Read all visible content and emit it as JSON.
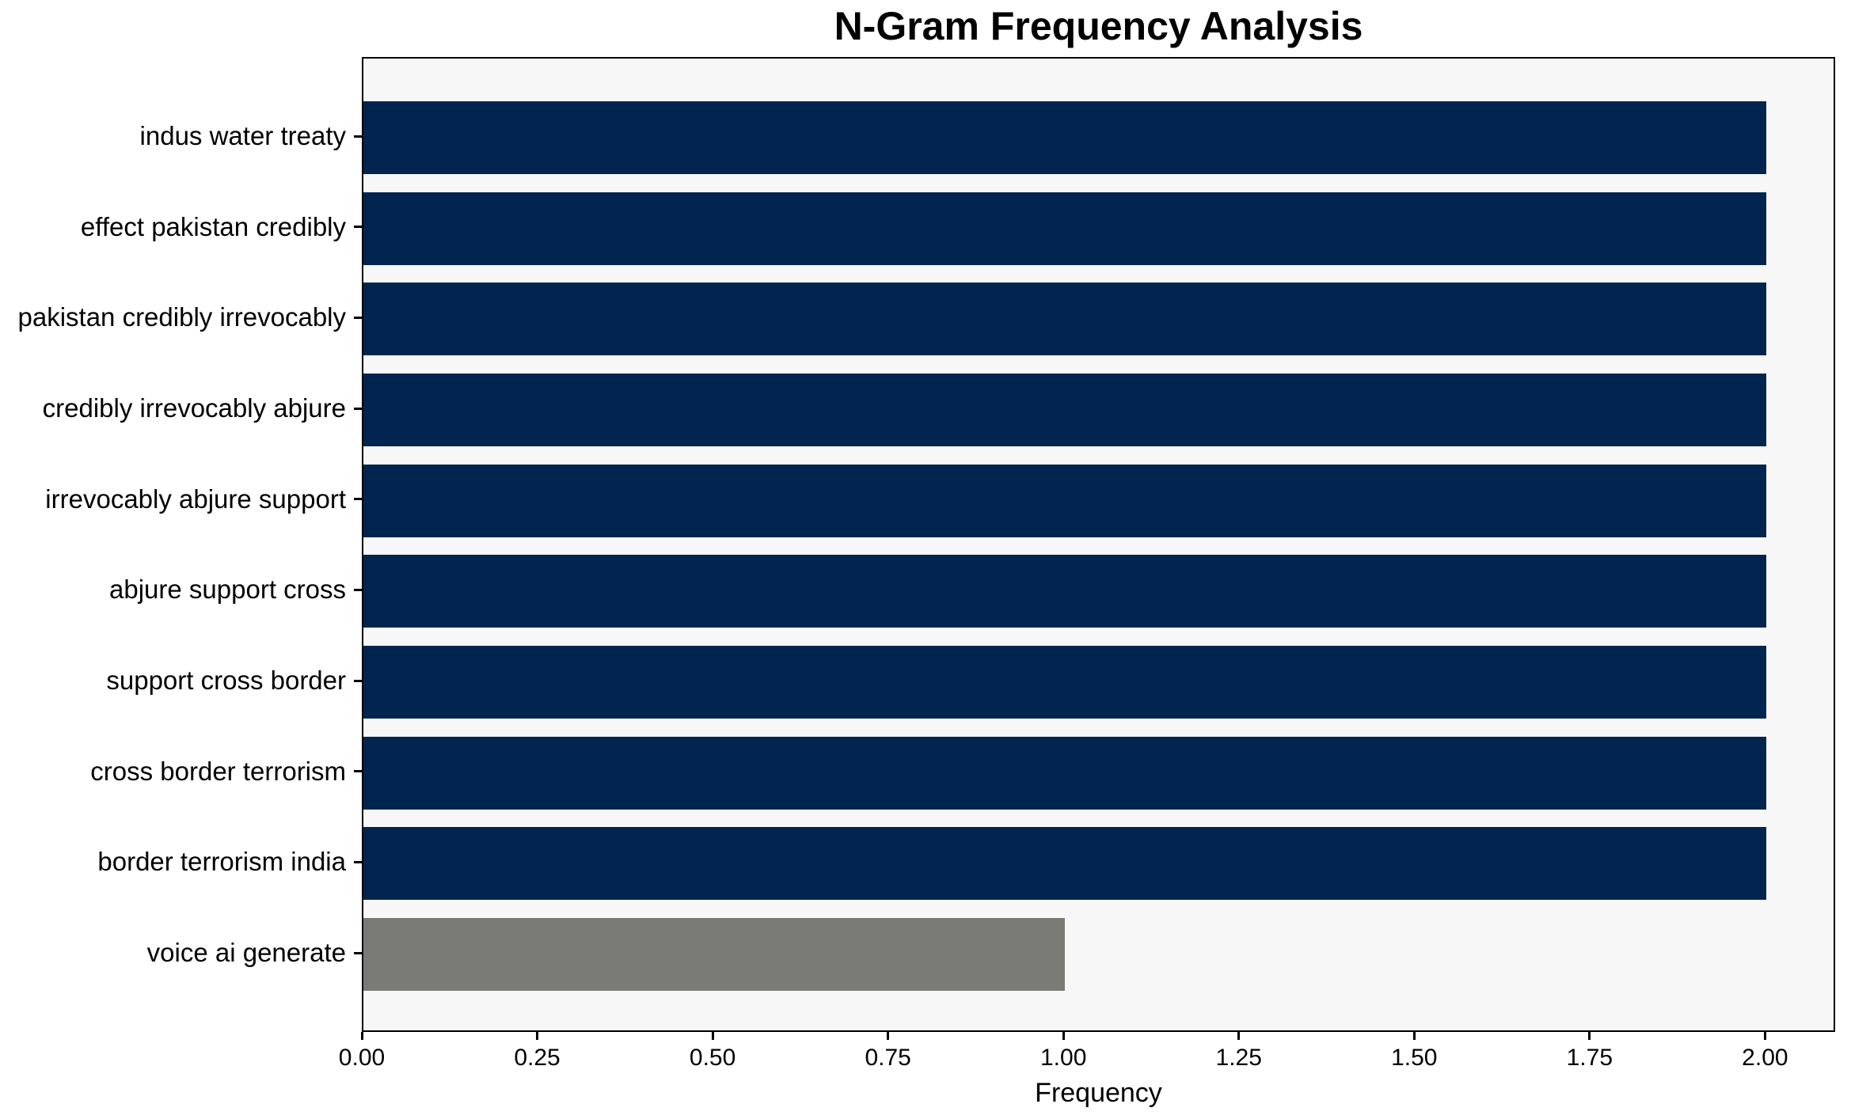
{
  "chart_data": {
    "type": "bar",
    "orientation": "horizontal",
    "title": "N-Gram Frequency Analysis",
    "xlabel": "Frequency",
    "ylabel": "",
    "categories": [
      "indus water treaty",
      "effect pakistan credibly",
      "pakistan credibly irrevocably",
      "credibly irrevocably abjure",
      "irrevocably abjure support",
      "abjure support cross",
      "support cross border",
      "cross border terrorism",
      "border terrorism india",
      "voice ai generate"
    ],
    "values": [
      2,
      2,
      2,
      2,
      2,
      2,
      2,
      2,
      2,
      1
    ],
    "bar_colors": [
      "#022550",
      "#022550",
      "#022550",
      "#022550",
      "#022550",
      "#022550",
      "#022550",
      "#022550",
      "#022550",
      "#7b7b76"
    ],
    "xlim": [
      0,
      2.1
    ],
    "xticks": [
      0.0,
      0.25,
      0.5,
      0.75,
      1.0,
      1.25,
      1.5,
      1.75,
      2.0
    ],
    "xtick_labels": [
      "0.00",
      "0.25",
      "0.50",
      "0.75",
      "1.00",
      "1.25",
      "1.50",
      "1.75",
      "2.00"
    ],
    "grid": false,
    "legend_position": "none",
    "plot_background": "#f7f7f7",
    "figure_background": "#ffffff",
    "spine_color": "#000000",
    "text_color": "#000000"
  }
}
